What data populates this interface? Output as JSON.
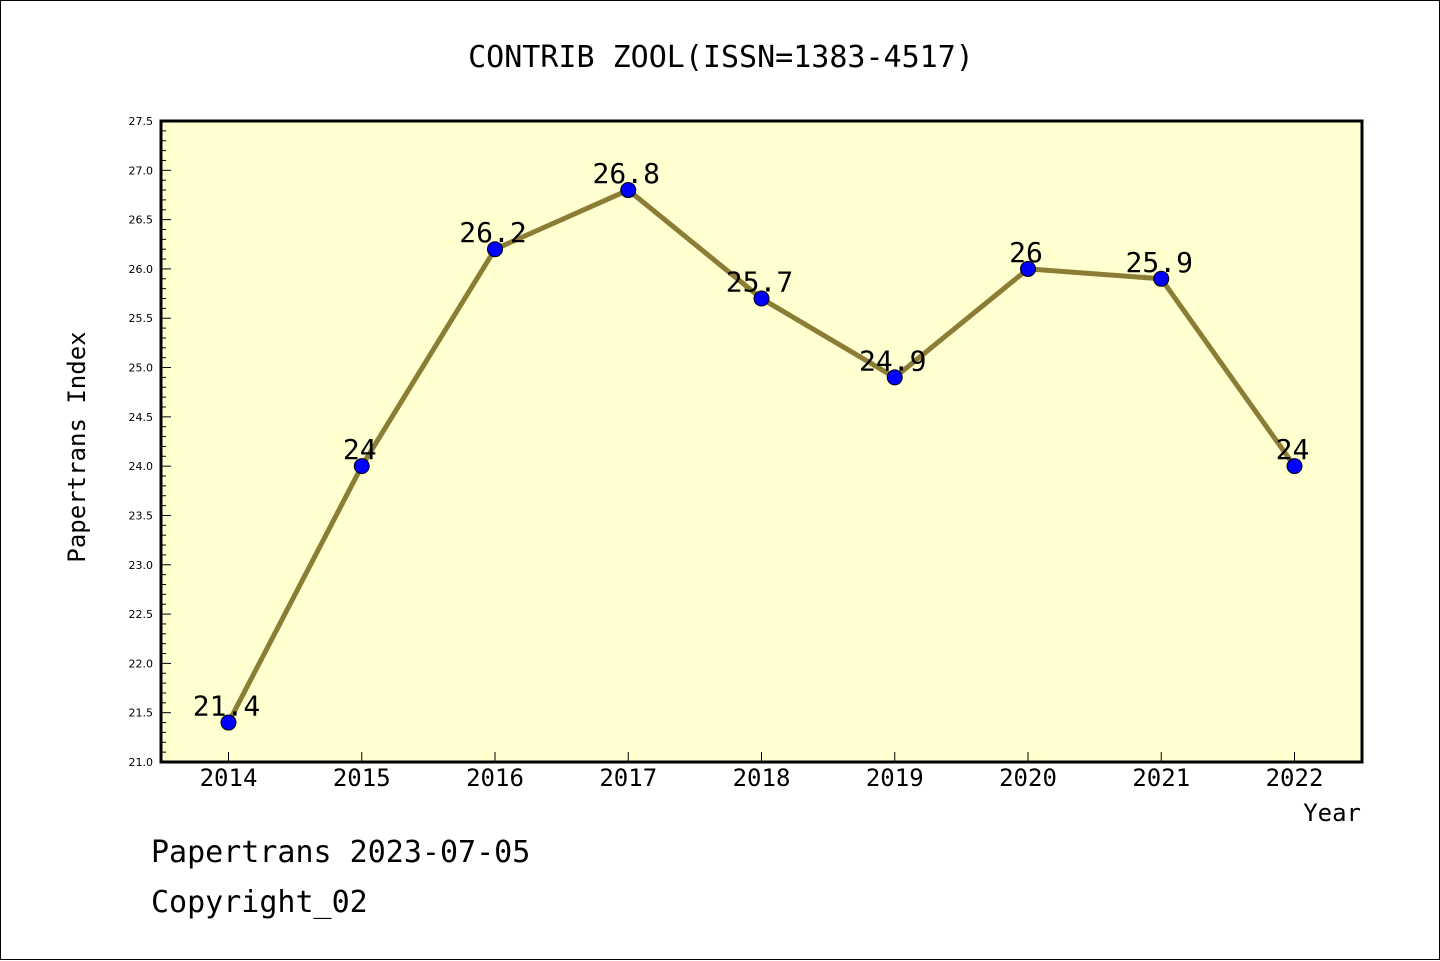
{
  "chart_data": {
    "type": "line",
    "title": "CONTRIB ZOOL(ISSN=1383-4517)",
    "xlabel": "Year",
    "ylabel": "Papertrans Index",
    "categories": [
      "2014",
      "2015",
      "2016",
      "2017",
      "2018",
      "2019",
      "2020",
      "2021",
      "2022"
    ],
    "series": [
      {
        "values": [
          21.4,
          24,
          26.2,
          26.8,
          25.7,
          24.9,
          26,
          25.9,
          24
        ],
        "data_labels": [
          "21.4",
          "24",
          "26.2",
          "26.8",
          "25.7",
          "24.9",
          "26",
          "25.9",
          "24"
        ]
      }
    ],
    "ylim": [
      21.0,
      27.5
    ],
    "yticks": [
      "21.0",
      "21.5",
      "22.0",
      "22.5",
      "23.0",
      "23.5",
      "24.0",
      "24.5",
      "25.0",
      "25.5",
      "26.0",
      "26.5",
      "27.0",
      "27.5"
    ],
    "grid": false,
    "colors": {
      "plot_background": "#ffffd0",
      "line": "#8b7d35",
      "marker": "#0000ff"
    }
  },
  "footer": {
    "date_line": "Papertrans 2023-07-05",
    "copyright": "Copyright_02"
  }
}
